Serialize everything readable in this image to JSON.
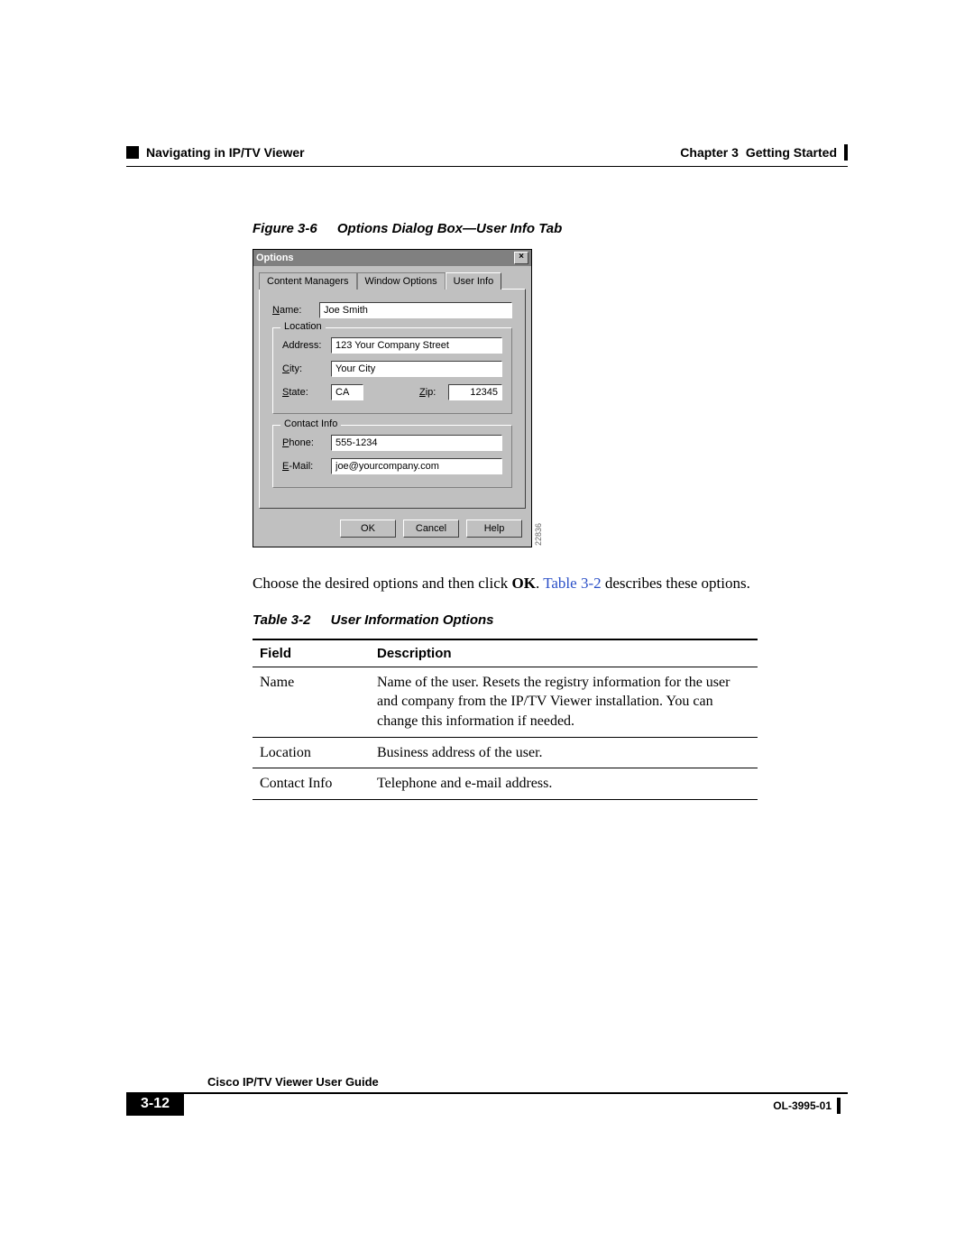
{
  "header": {
    "chapter": "Chapter 3",
    "chapter_title": "Getting Started",
    "section": "Navigating in IP/TV Viewer"
  },
  "figure": {
    "number": "Figure 3-6",
    "title": "Options Dialog Box—User Info Tab",
    "side_id": "22836"
  },
  "dialog": {
    "title": "Options",
    "close_glyph": "×",
    "tabs": {
      "content_managers": "Content Managers",
      "window_options": "Window Options",
      "user_info": "User Info"
    },
    "name_label": "Name:",
    "name_value": "Joe Smith",
    "location_legend": "Location",
    "address_label": "Address:",
    "address_value": "123 Your Company Street",
    "city_label": "City:",
    "city_value": "Your City",
    "state_label": "State:",
    "state_value": "CA",
    "zip_label": "Zip:",
    "zip_value": "12345",
    "contact_legend": "Contact Info",
    "phone_label": "Phone:",
    "phone_value": "555-1234",
    "email_label": "E-Mail:",
    "email_value": "joe@yourcompany.com",
    "buttons": {
      "ok": "OK",
      "cancel": "Cancel",
      "help": "Help"
    }
  },
  "paragraph": {
    "pre": "Choose the desired options and then click ",
    "bold": "OK",
    "mid": ". ",
    "link": "Table 3-2",
    "post": " describes these options."
  },
  "table": {
    "number": "Table 3-2",
    "title": "User Information Options",
    "columns": {
      "field": "Field",
      "description": "Description"
    },
    "rows": [
      {
        "field": "Name",
        "desc": "Name of the user. Resets the registry information for the user and company from the IP/TV Viewer installation. You can change this information if needed."
      },
      {
        "field": "Location",
        "desc": "Business address of the user."
      },
      {
        "field": "Contact Info",
        "desc": "Telephone and e-mail address."
      }
    ]
  },
  "footer": {
    "guide": "Cisco IP/TV Viewer User Guide",
    "page": "3-12",
    "docnum": "OL-3995-01"
  },
  "colors": {
    "link": "#2a4fc7",
    "dialog_bg": "#c0c0c0",
    "titlebar_bg": "#808080"
  }
}
